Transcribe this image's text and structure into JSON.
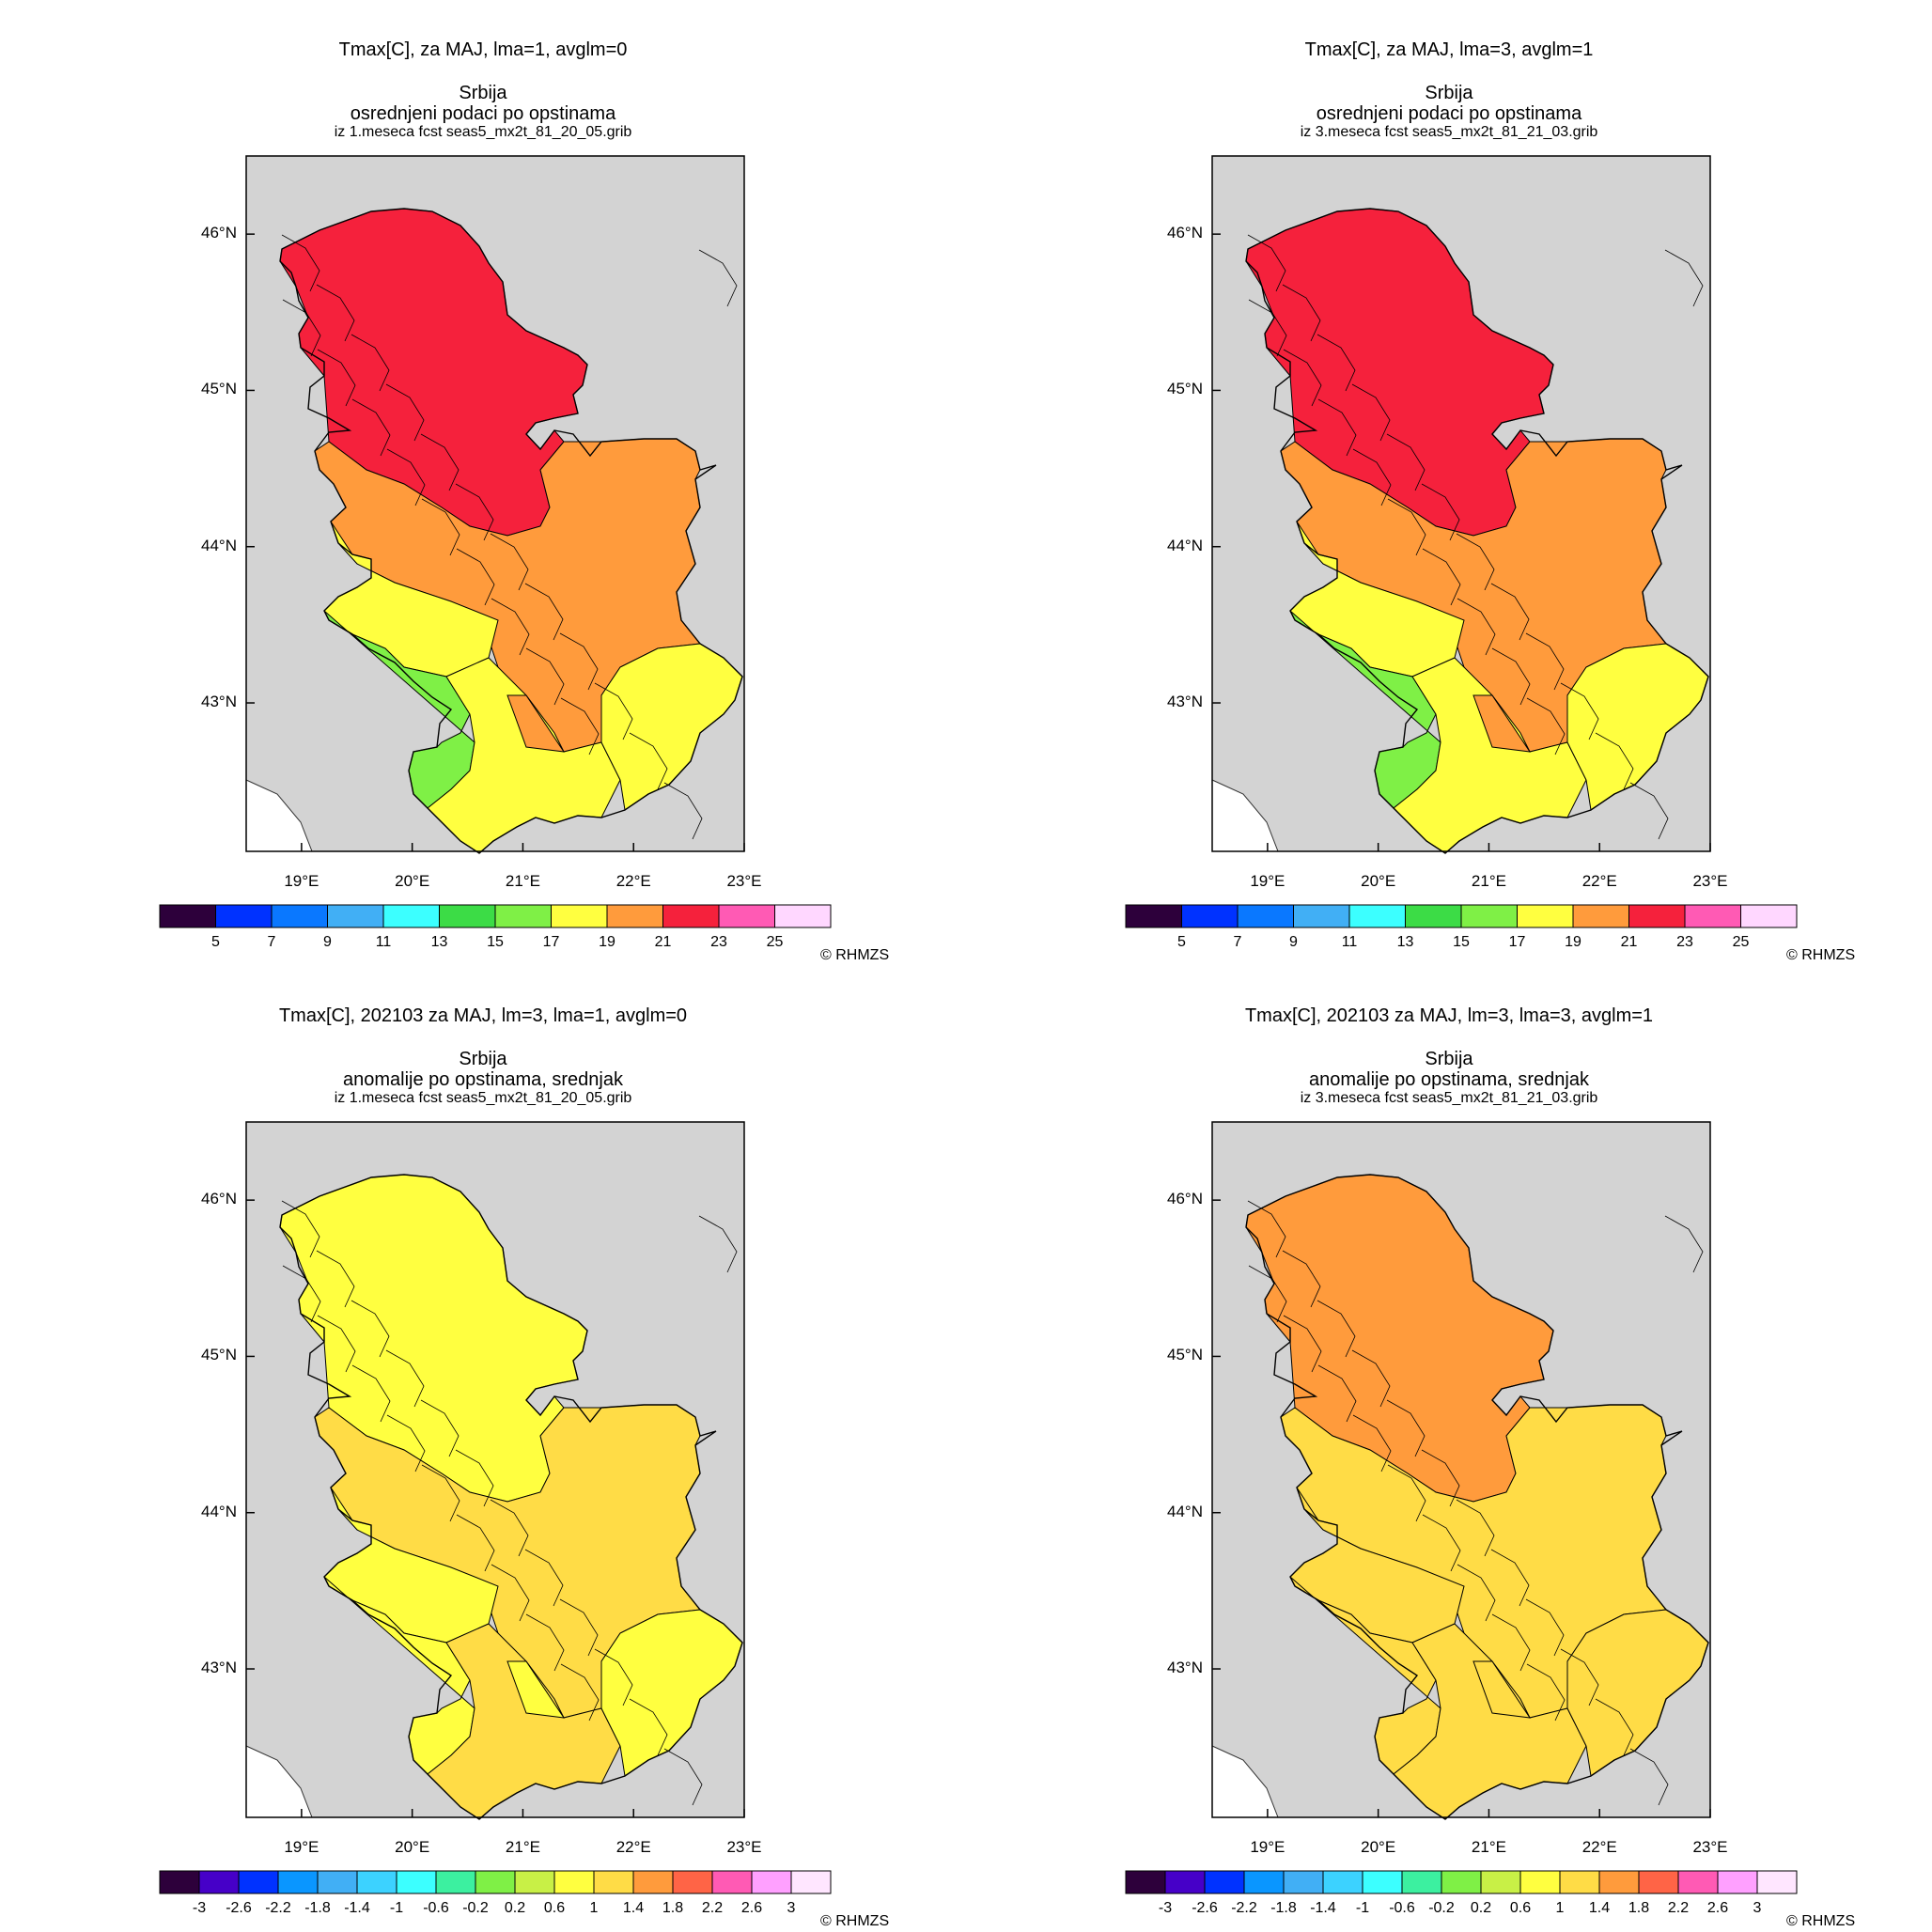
{
  "panels": [
    {
      "title": "Tmax[C], za MAJ, lma=1, avglm=0",
      "region": "Srbija",
      "subtitle": "osrednjeni podaci po opstinama",
      "source": "iz 1.meseca fcst seas5_mx2t_81_20_05.grib",
      "lat_ticks": [
        "46°N",
        "45°N",
        "44°N",
        "43°N"
      ],
      "lon_ticks": [
        "19°E",
        "20°E",
        "21°E",
        "22°E",
        "23°E"
      ],
      "colorbar": {
        "colors": [
          "#2d003b",
          "#0032ff",
          "#0a78ff",
          "#41aff5",
          "#3cffff",
          "#3cdc46",
          "#7ff046",
          "#ffff40",
          "#ff9b3c",
          "#f5213c",
          "#ff5ab4",
          "#ffd7ff"
        ],
        "labels": [
          "5",
          "7",
          "9",
          "11",
          "13",
          "15",
          "17",
          "19",
          "21",
          "23",
          "25"
        ]
      },
      "zones": {
        "north": "#f5213c",
        "central": "#ff9b3c",
        "west": "#ffff40",
        "southwest": "#7ff046",
        "south": "#ffff40",
        "southeast": "#ffff40",
        "east": "#ff9b3c"
      },
      "copyright": "© RHMZS"
    },
    {
      "title": "Tmax[C], za MAJ, lma=3, avglm=1",
      "region": "Srbija",
      "subtitle": "osrednjeni podaci po opstinama",
      "source": "iz 3.meseca fcst seas5_mx2t_81_21_03.grib",
      "lat_ticks": [
        "46°N",
        "45°N",
        "44°N",
        "43°N"
      ],
      "lon_ticks": [
        "19°E",
        "20°E",
        "21°E",
        "22°E",
        "23°E"
      ],
      "colorbar": {
        "colors": [
          "#2d003b",
          "#0032ff",
          "#0a78ff",
          "#41aff5",
          "#3cffff",
          "#3cdc46",
          "#7ff046",
          "#ffff40",
          "#ff9b3c",
          "#f5213c",
          "#ff5ab4",
          "#ffd7ff"
        ],
        "labels": [
          "5",
          "7",
          "9",
          "11",
          "13",
          "15",
          "17",
          "19",
          "21",
          "23",
          "25"
        ]
      },
      "zones": {
        "north": "#f5213c",
        "central": "#ff9b3c",
        "west": "#ffff40",
        "southwest": "#7ff046",
        "south": "#ffff40",
        "southeast": "#ffff40",
        "east": "#ff9b3c"
      },
      "copyright": "© RHMZS"
    },
    {
      "title": "Tmax[C], 202103 za MAJ, lm=3, lma=1, avglm=0",
      "region": "Srbija",
      "subtitle": "anomalije po opstinama, srednjak",
      "source": "iz 1.meseca fcst seas5_mx2t_81_20_05.grib",
      "lat_ticks": [
        "46°N",
        "45°N",
        "44°N",
        "43°N"
      ],
      "lon_ticks": [
        "19°E",
        "20°E",
        "21°E",
        "22°E",
        "23°E"
      ],
      "colorbar": {
        "colors": [
          "#2d003b",
          "#4600c8",
          "#0032ff",
          "#0a96ff",
          "#41aff5",
          "#3cd2ff",
          "#3cffff",
          "#3cf0a0",
          "#7ff046",
          "#c8f046",
          "#ffff40",
          "#ffdc46",
          "#ff9b3c",
          "#ff6446",
          "#ff5ab4",
          "#ffa0ff",
          "#ffe6ff"
        ],
        "labels": [
          "-3",
          "-2.6",
          "-2.2",
          "-1.8",
          "-1.4",
          "-1",
          "-0.6",
          "-0.2",
          "0.2",
          "0.6",
          "1",
          "1.4",
          "1.8",
          "2.2",
          "2.6",
          "3"
        ]
      },
      "zones": {
        "north": "#ffff40",
        "central": "#ffdc46",
        "west": "#ffff40",
        "southwest": "#ffff40",
        "south": "#ffdc46",
        "southeast": "#ffff40",
        "east": "#ffff40"
      },
      "copyright": "© RHMZS"
    },
    {
      "title": "Tmax[C], 202103 za MAJ, lm=3, lma=3, avglm=1",
      "region": "Srbija",
      "subtitle": "anomalije po opstinama, srednjak",
      "source": "iz 3.meseca fcst seas5_mx2t_81_21_03.grib",
      "lat_ticks": [
        "46°N",
        "45°N",
        "44°N",
        "43°N"
      ],
      "lon_ticks": [
        "19°E",
        "20°E",
        "21°E",
        "22°E",
        "23°E"
      ],
      "colorbar": {
        "colors": [
          "#2d003b",
          "#4600c8",
          "#0032ff",
          "#0a96ff",
          "#41aff5",
          "#3cd2ff",
          "#3cffff",
          "#3cf0a0",
          "#7ff046",
          "#c8f046",
          "#ffff40",
          "#ffdc46",
          "#ff9b3c",
          "#ff6446",
          "#ff5ab4",
          "#ffa0ff",
          "#ffe6ff"
        ],
        "labels": [
          "-3",
          "-2.6",
          "-2.2",
          "-1.8",
          "-1.4",
          "-1",
          "-0.6",
          "-0.2",
          "0.2",
          "0.6",
          "1",
          "1.4",
          "1.8",
          "2.2",
          "2.6",
          "3"
        ]
      },
      "zones": {
        "north": "#ff9b3c",
        "central": "#ffdc46",
        "west": "#ffdc46",
        "southwest": "#ffdc46",
        "south": "#ffdc46",
        "southeast": "#ffdc46",
        "east": "#ffdc46"
      },
      "copyright": "© RHMZS"
    }
  ]
}
